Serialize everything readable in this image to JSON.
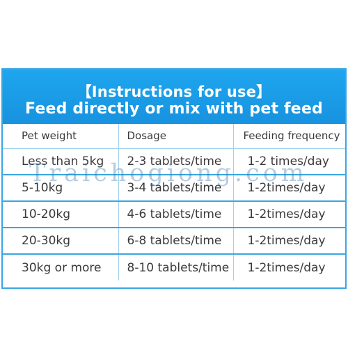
{
  "banner": {
    "line1": "【Instructions for use】",
    "line2": "Feed directly or mix with pet feed"
  },
  "table": {
    "headers": [
      "Pet weight",
      "Dosage",
      "Feeding frequency"
    ],
    "rows": [
      [
        "Less than 5kg",
        "2-3 tablets/time",
        "1-2 times/day"
      ],
      [
        "5-10kg",
        "3-4 tablets/time",
        "1-2times/day"
      ],
      [
        "10-20kg",
        "4-6 tablets/time",
        "1-2times/day"
      ],
      [
        "20-30kg",
        "6-8 tablets/time",
        "1-2times/day"
      ],
      [
        "30kg or more",
        "8-10 tablets/time",
        "1-2times/day"
      ]
    ]
  },
  "watermark": "Traichogiong.com",
  "colors": {
    "banner": "#1ea6ef",
    "border": "#3aa6e0",
    "text": "#3a3a3a",
    "banner_text": "#ffffff"
  }
}
